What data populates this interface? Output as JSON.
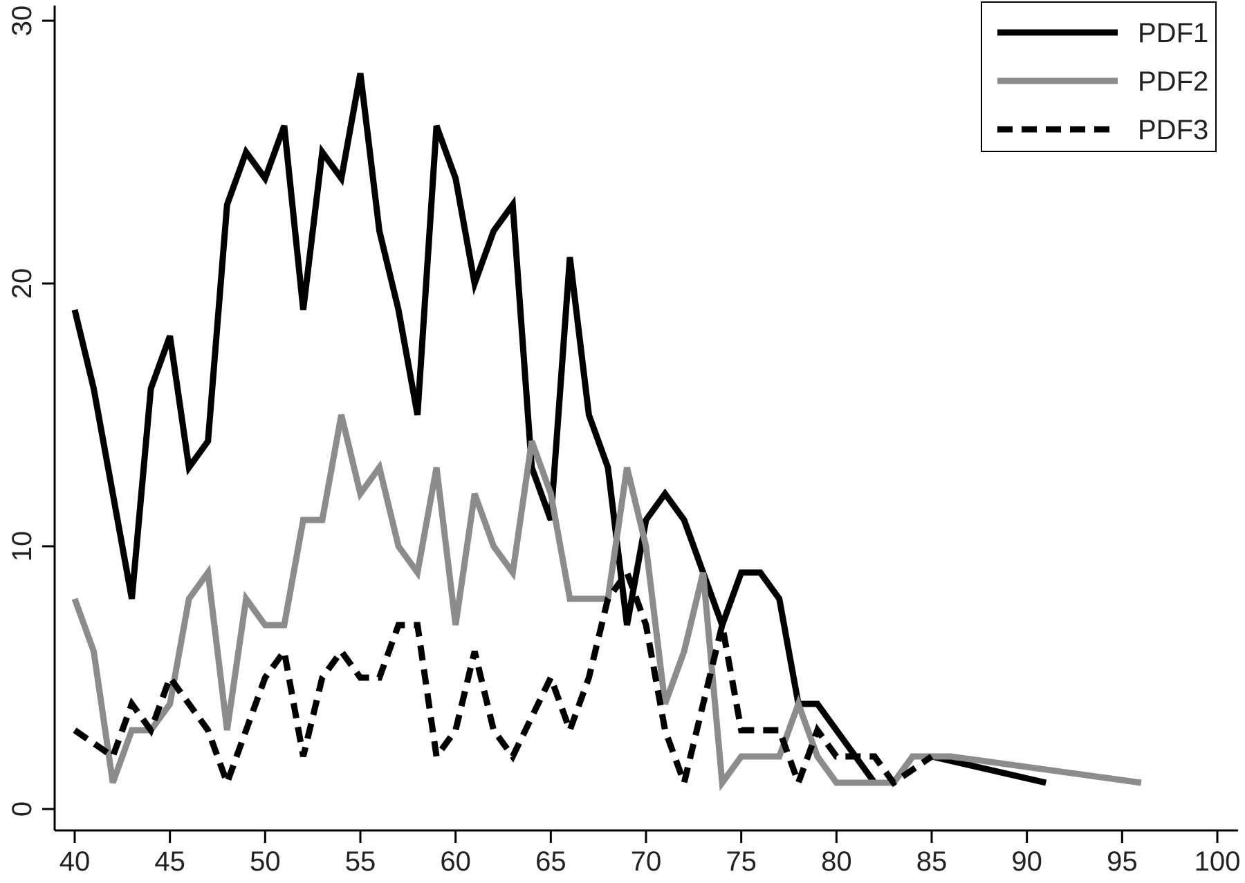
{
  "chart_data": {
    "type": "line",
    "title": "",
    "xlabel": "",
    "ylabel": "",
    "xlim": [
      40,
      100
    ],
    "ylim": [
      0,
      30
    ],
    "x_ticks": [
      "40",
      "45",
      "50",
      "55",
      "60",
      "65",
      "70",
      "75",
      "80",
      "85",
      "90",
      "95",
      "100"
    ],
    "y_ticks": [
      "0",
      "10",
      "20",
      "30"
    ],
    "grid": false,
    "legend_position": "top-right",
    "series": [
      {
        "name": "PDF1",
        "color": "#000000",
        "style": "solid",
        "points": [
          [
            40,
            19
          ],
          [
            41,
            16
          ],
          [
            42,
            12
          ],
          [
            43,
            8
          ],
          [
            44,
            16
          ],
          [
            45,
            18
          ],
          [
            46,
            13
          ],
          [
            47,
            14
          ],
          [
            48,
            23
          ],
          [
            49,
            25
          ],
          [
            50,
            24
          ],
          [
            51,
            26
          ],
          [
            52,
            19
          ],
          [
            53,
            25
          ],
          [
            54,
            24
          ],
          [
            55,
            28
          ],
          [
            56,
            22
          ],
          [
            57,
            19
          ],
          [
            58,
            15
          ],
          [
            59,
            26
          ],
          [
            60,
            24
          ],
          [
            61,
            20
          ],
          [
            62,
            22
          ],
          [
            63,
            23
          ],
          [
            64,
            13
          ],
          [
            65,
            11
          ],
          [
            66,
            21
          ],
          [
            67,
            15
          ],
          [
            68,
            13
          ],
          [
            69,
            7
          ],
          [
            70,
            11
          ],
          [
            71,
            12
          ],
          [
            72,
            11
          ],
          [
            73,
            9
          ],
          [
            74,
            7
          ],
          [
            75,
            9
          ],
          [
            76,
            9
          ],
          [
            77,
            8
          ],
          [
            78,
            4
          ],
          [
            79,
            4
          ],
          [
            80,
            3
          ],
          [
            81,
            2
          ],
          [
            82,
            1
          ],
          [
            83,
            1
          ],
          [
            84,
            2
          ],
          [
            85,
            2
          ],
          [
            91,
            1
          ]
        ]
      },
      {
        "name": "PDF2",
        "color": "#8c8c8c",
        "style": "solid",
        "points": [
          [
            40,
            8
          ],
          [
            41,
            6
          ],
          [
            42,
            1
          ],
          [
            43,
            3
          ],
          [
            44,
            3
          ],
          [
            45,
            4
          ],
          [
            46,
            8
          ],
          [
            47,
            9
          ],
          [
            48,
            3
          ],
          [
            49,
            8
          ],
          [
            50,
            7
          ],
          [
            51,
            7
          ],
          [
            52,
            11
          ],
          [
            53,
            11
          ],
          [
            54,
            15
          ],
          [
            55,
            12
          ],
          [
            56,
            13
          ],
          [
            57,
            10
          ],
          [
            58,
            9
          ],
          [
            59,
            13
          ],
          [
            60,
            7
          ],
          [
            61,
            12
          ],
          [
            62,
            10
          ],
          [
            63,
            9
          ],
          [
            64,
            14
          ],
          [
            65,
            12
          ],
          [
            66,
            8
          ],
          [
            67,
            8
          ],
          [
            68,
            8
          ],
          [
            69,
            13
          ],
          [
            70,
            10
          ],
          [
            71,
            4
          ],
          [
            72,
            6
          ],
          [
            73,
            9
          ],
          [
            74,
            1
          ],
          [
            75,
            2
          ],
          [
            76,
            2
          ],
          [
            77,
            2
          ],
          [
            78,
            4
          ],
          [
            79,
            2
          ],
          [
            80,
            1
          ],
          [
            81,
            1
          ],
          [
            82,
            1
          ],
          [
            83,
            1
          ],
          [
            84,
            2
          ],
          [
            85,
            2
          ],
          [
            86,
            2
          ],
          [
            96,
            1
          ]
        ]
      },
      {
        "name": "PDF3",
        "color": "#000000",
        "style": "dashed",
        "points": [
          [
            40,
            3
          ],
          [
            41,
            2.5
          ],
          [
            42,
            2
          ],
          [
            43,
            4
          ],
          [
            44,
            3
          ],
          [
            45,
            5
          ],
          [
            46,
            4
          ],
          [
            47,
            3
          ],
          [
            48,
            1
          ],
          [
            49,
            3
          ],
          [
            50,
            5
          ],
          [
            51,
            6
          ],
          [
            52,
            2
          ],
          [
            53,
            5
          ],
          [
            54,
            6
          ],
          [
            55,
            5
          ],
          [
            56,
            5
          ],
          [
            57,
            7
          ],
          [
            58,
            7
          ],
          [
            59,
            2
          ],
          [
            60,
            3
          ],
          [
            61,
            6
          ],
          [
            62,
            3
          ],
          [
            63,
            2
          ],
          [
            64,
            3.5
          ],
          [
            65,
            5
          ],
          [
            66,
            3
          ],
          [
            67,
            5
          ],
          [
            68,
            8
          ],
          [
            69,
            9
          ],
          [
            70,
            7
          ],
          [
            71,
            3
          ],
          [
            72,
            1
          ],
          [
            73,
            4
          ],
          [
            74,
            7
          ],
          [
            75,
            3
          ],
          [
            76,
            3
          ],
          [
            77,
            3
          ],
          [
            78,
            1
          ],
          [
            79,
            3
          ],
          [
            80,
            2
          ],
          [
            81,
            2
          ],
          [
            82,
            2
          ],
          [
            83,
            1
          ],
          [
            84,
            1.5
          ],
          [
            85,
            2
          ]
        ]
      }
    ]
  }
}
